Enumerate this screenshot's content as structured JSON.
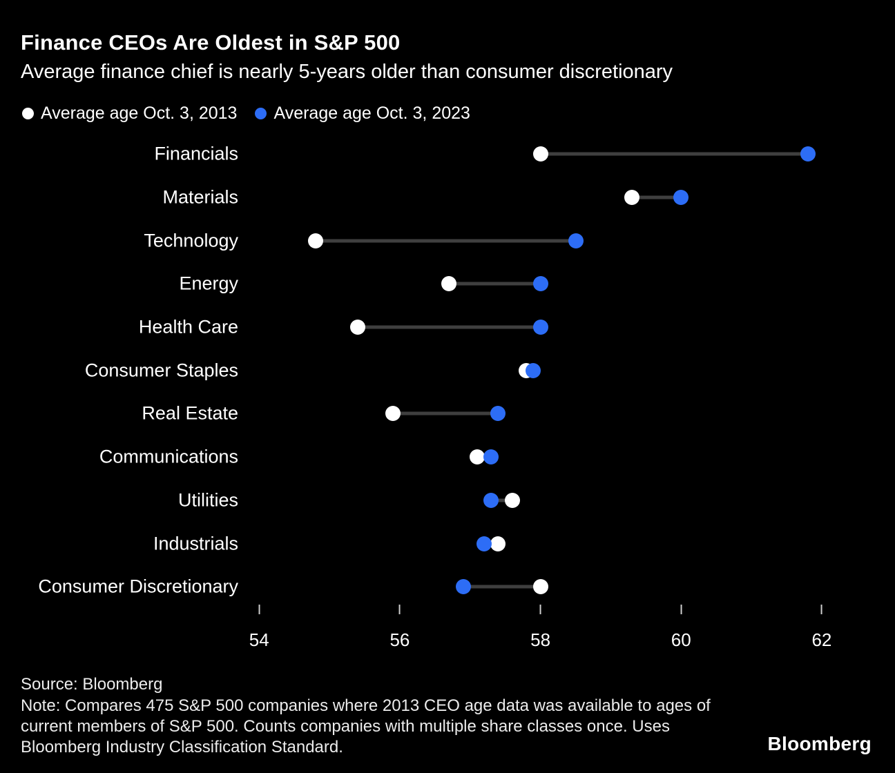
{
  "header": {
    "title": "Finance CEOs Are Oldest in S&P 500",
    "subtitle": "Average finance chief is nearly 5-years older than consumer discretionary"
  },
  "legend": [
    {
      "label": "Average age Oct. 3, 2013",
      "color": "#ffffff"
    },
    {
      "label": "Average age Oct. 3, 2023",
      "color": "#2d6df6"
    }
  ],
  "chart_data": {
    "type": "scatter",
    "variant": "dumbbell",
    "title": "Finance CEOs Are Oldest in S&P 500",
    "subtitle": "Average finance chief is nearly 5-years older than consumer discretionary",
    "categories": [
      "Financials",
      "Materials",
      "Technology",
      "Energy",
      "Health Care",
      "Consumer Staples",
      "Real Estate",
      "Communications",
      "Utilities",
      "Industrials",
      "Consumer Discretionary"
    ],
    "series": [
      {
        "name": "Average age Oct. 3, 2013",
        "color": "#ffffff",
        "values": [
          58.0,
          59.3,
          54.8,
          56.7,
          55.4,
          57.8,
          55.9,
          57.1,
          57.6,
          57.4,
          58.0
        ]
      },
      {
        "name": "Average age Oct. 3, 2023",
        "color": "#2d6df6",
        "values": [
          61.8,
          60.0,
          58.5,
          58.0,
          58.0,
          57.9,
          57.4,
          57.3,
          57.3,
          57.2,
          56.9
        ]
      }
    ],
    "xlabel": "",
    "ylabel": "",
    "xticks": [
      54,
      56,
      58,
      60,
      62
    ],
    "xlim": [
      53.85,
      62.59
    ],
    "grid": false,
    "legend_position": "top",
    "connector_color": "#3f3f3f",
    "background": "#000000"
  },
  "footer": {
    "source": "Source: Bloomberg",
    "note": "Note: Compares 475 S&P 500 companies where 2013 CEO age data was available to ages of current members of S&P 500. Counts companies with multiple share classes once. Uses Bloomberg Industry Classification Standard.",
    "logo": "Bloomberg"
  }
}
